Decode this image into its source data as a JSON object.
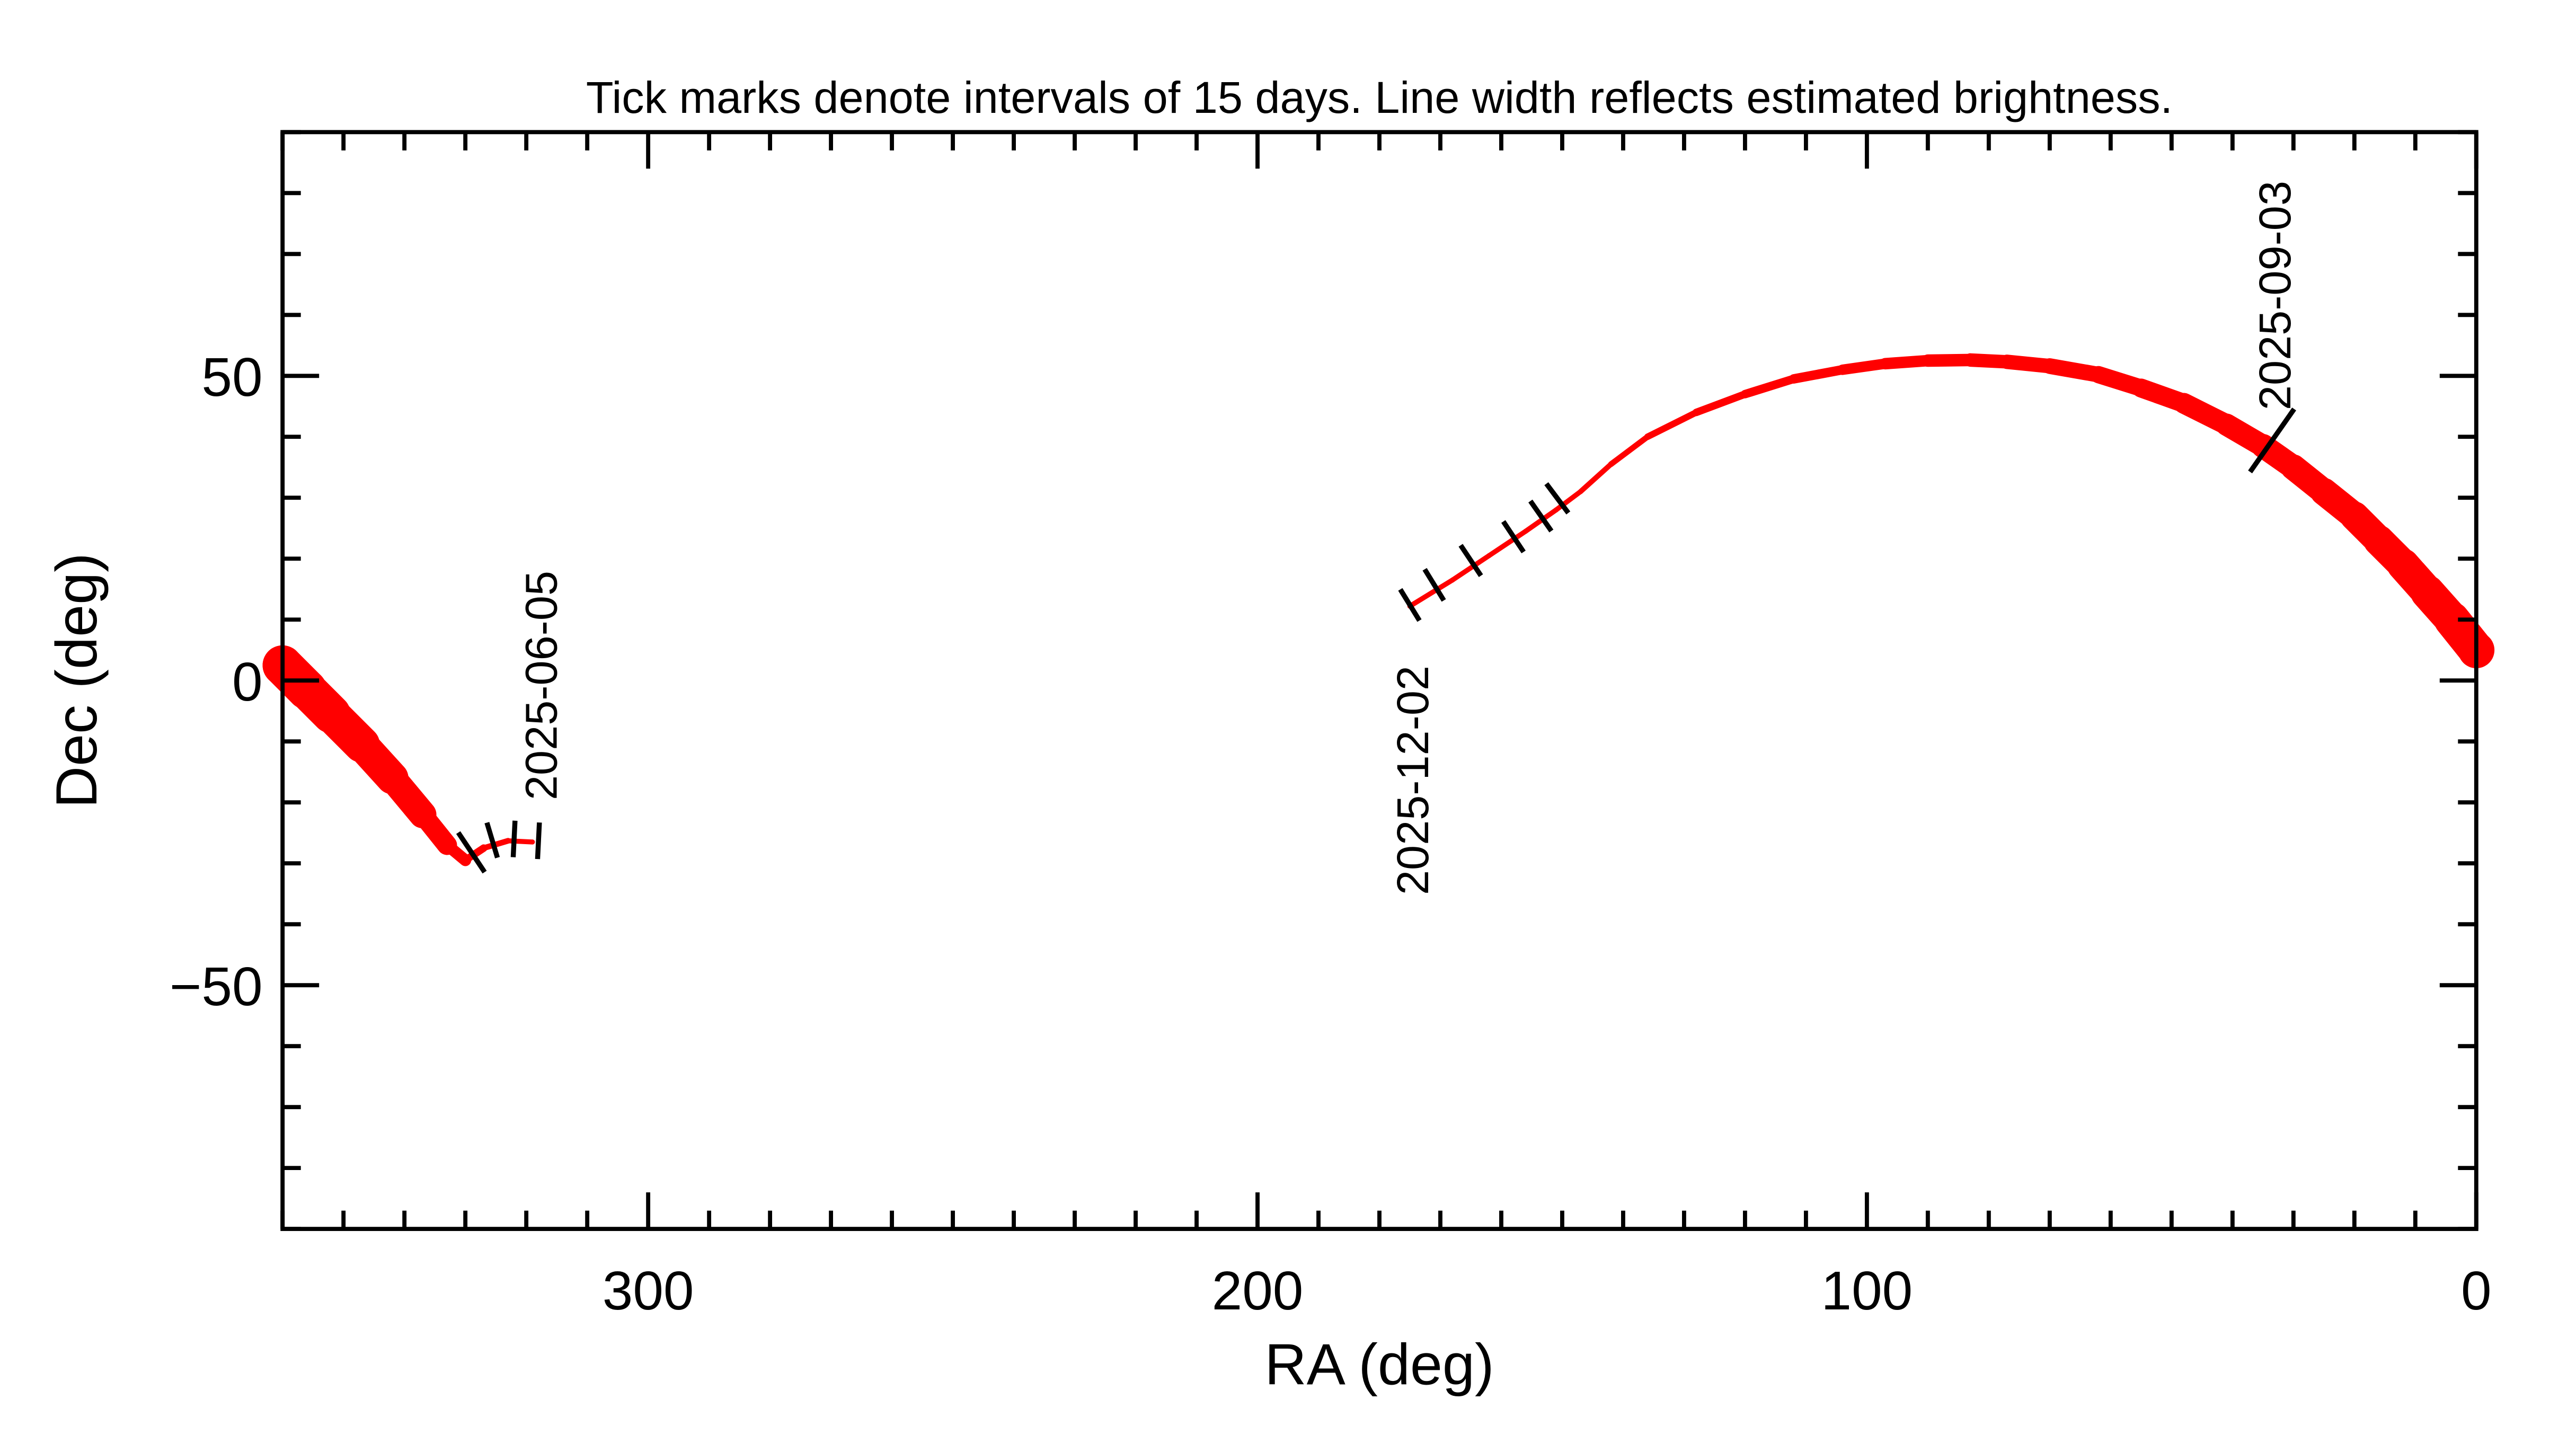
{
  "chart_data": {
    "type": "line",
    "title": "Tick marks denote intervals of 15 days.  Line width reflects estimated brightness.",
    "xlabel": "RA (deg)",
    "ylabel": "Dec (deg)",
    "xlim": [
      360,
      0
    ],
    "ylim": [
      -90,
      90
    ],
    "x_ticks": [
      300,
      200,
      100,
      0
    ],
    "x_tick_labels": [
      "300",
      "200",
      "100",
      "0"
    ],
    "y_ticks": [
      50,
      0,
      -50
    ],
    "y_tick_labels": [
      "50",
      "0",
      "−50"
    ],
    "x_minor_step": 10,
    "y_minor_step": 10,
    "grid": false,
    "line_color": "#ff0000",
    "tick_color": "#000000",
    "series": [
      {
        "points_ra_dec_brightness": [
          [
            319,
            -26.5,
            1
          ],
          [
            323,
            -26.3,
            1
          ],
          [
            327,
            -27.5,
            1.3
          ],
          [
            330,
            -29.5,
            1.7
          ],
          [
            333,
            -27,
            3
          ],
          [
            337,
            -22,
            5
          ],
          [
            342,
            -16,
            6
          ],
          [
            347,
            -10.5,
            7
          ],
          [
            352,
            -5.5,
            7.5
          ],
          [
            356,
            -1.5,
            8
          ],
          [
            360,
            2.5,
            8
          ]
        ]
      },
      {
        "points_ra_dec_brightness": [
          [
            0,
            5,
            7.3
          ],
          [
            4,
            10,
            7
          ],
          [
            8,
            14.5,
            6.7
          ],
          [
            12,
            19,
            6.3
          ],
          [
            16,
            23,
            6
          ],
          [
            20,
            27,
            5.7
          ],
          [
            25,
            31,
            5.3
          ],
          [
            30,
            35,
            5
          ],
          [
            35,
            38.5,
            4.6
          ],
          [
            41,
            42,
            4.3
          ],
          [
            48,
            45.5,
            4
          ],
          [
            55,
            48,
            3.6
          ],
          [
            62,
            50.2,
            3.3
          ],
          [
            70,
            51.6,
            3
          ],
          [
            77,
            52.3,
            2.8
          ],
          [
            83,
            52.6,
            2.6
          ],
          [
            90,
            52.5,
            2.4
          ],
          [
            97,
            52,
            2.2
          ],
          [
            104,
            51,
            2
          ],
          [
            112,
            49.5,
            1.8
          ],
          [
            120,
            47,
            1.6
          ],
          [
            128,
            44,
            1.4
          ],
          [
            136,
            40,
            1.2
          ],
          [
            142,
            35.5,
            1.1
          ],
          [
            147,
            31,
            1
          ],
          [
            151,
            28,
            1
          ],
          [
            156,
            24.5,
            1
          ],
          [
            162,
            20.5,
            1
          ],
          [
            168,
            16.5,
            1
          ],
          [
            175,
            12.2,
            1
          ]
        ]
      }
    ],
    "interval_ticks": [
      {
        "ra": 318,
        "dec": -26.3,
        "len": 1
      },
      {
        "ra": 322,
        "dec": -26,
        "len": 1
      },
      {
        "ra": 325.6,
        "dec": -26.2,
        "len": 1
      },
      {
        "ra": 329,
        "dec": -28.2,
        "len": 1.3
      },
      {
        "ra": 33.5,
        "dec": 39.4,
        "len": 2.1
      },
      {
        "ra": 150.8,
        "dec": 29.9,
        "len": 1
      },
      {
        "ra": 153.5,
        "dec": 27,
        "len": 1
      },
      {
        "ra": 158,
        "dec": 23.6,
        "len": 1
      },
      {
        "ra": 165,
        "dec": 19.7,
        "len": 1
      },
      {
        "ra": 171,
        "dec": 15.7,
        "len": 1
      },
      {
        "ra": 175,
        "dec": 12.4,
        "len": 1
      }
    ],
    "date_labels": [
      {
        "text": "2025-06-05",
        "ra": 318,
        "dec": -27
      },
      {
        "text": "2025-12-02",
        "ra": 175,
        "dec": 12
      },
      {
        "text": "2025-09-03",
        "ra": 33.5,
        "dec": 37
      }
    ]
  }
}
